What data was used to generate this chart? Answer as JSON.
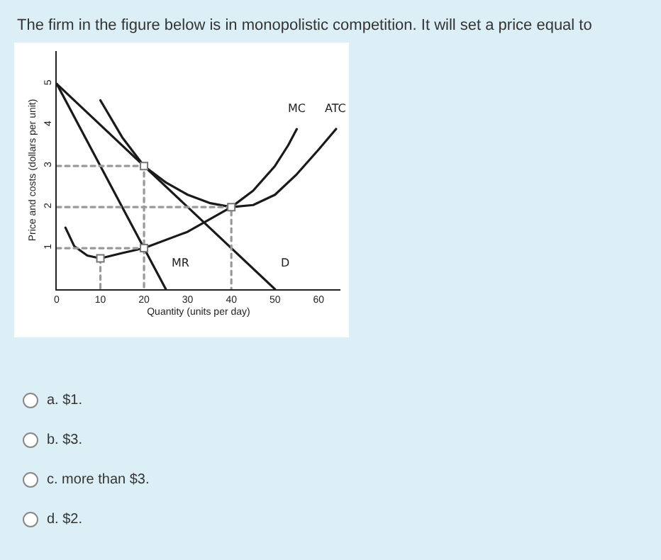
{
  "chart_data": {
    "type": "line",
    "title": "The firm in the figure below is in monopolistic competition. It will set a price equal to",
    "xlabel": "Quantity (units per day)",
    "ylabel": "Price and costs (dollars per unit)",
    "xlim": [
      0,
      65
    ],
    "ylim": [
      0,
      5.8
    ],
    "xticks": [
      0,
      10,
      20,
      30,
      40,
      50,
      60
    ],
    "yticks": [
      1,
      2,
      3,
      4,
      5
    ],
    "grid": false,
    "legend": false,
    "series": [
      {
        "name": "D",
        "color": "#1a1a1a",
        "x": [
          0,
          50
        ],
        "values": [
          5,
          0
        ]
      },
      {
        "name": "MR",
        "color": "#1a1a1a",
        "x": [
          0,
          25
        ],
        "values": [
          5,
          0
        ]
      },
      {
        "name": "ATC",
        "color": "#1a1a1a",
        "x": [
          10,
          15,
          20,
          25,
          30,
          35,
          40,
          45,
          50,
          55,
          60,
          64
        ],
        "values": [
          4.6,
          3.7,
          3.0,
          2.6,
          2.3,
          2.1,
          2.0,
          2.05,
          2.3,
          2.8,
          3.4,
          3.9
        ]
      },
      {
        "name": "MC",
        "color": "#1a1a1a",
        "x": [
          2,
          4,
          7,
          10,
          15,
          20,
          30,
          40,
          45,
          50,
          53,
          55
        ],
        "values": [
          1.5,
          1.05,
          0.82,
          0.75,
          0.88,
          1.0,
          1.4,
          2.0,
          2.4,
          3.0,
          3.5,
          3.9
        ]
      },
      {
        "color": "#999999",
        "line_style": "dotted",
        "x": [
          0,
          20,
          20
        ],
        "values": [
          3,
          3,
          0
        ]
      },
      {
        "color": "#999999",
        "line_style": "dotted",
        "x": [
          0,
          40,
          40
        ],
        "values": [
          2,
          2,
          0
        ]
      },
      {
        "color": "#999999",
        "line_style": "dotted",
        "x": [
          0,
          20
        ],
        "values": [
          1,
          1
        ]
      },
      {
        "color": "#999999",
        "line_style": "dotted",
        "x": [
          10,
          10
        ],
        "values": [
          0.75,
          0
        ]
      },
      {
        "type": "scatter",
        "marker": "square",
        "color": "#ffffff",
        "x": [
          20,
          40,
          20,
          10
        ],
        "values": [
          3,
          2,
          1,
          0.75
        ]
      }
    ],
    "annotations": [
      "a. $1.",
      "b. $3.",
      "c. more than $3.",
      "d. $2."
    ]
  }
}
